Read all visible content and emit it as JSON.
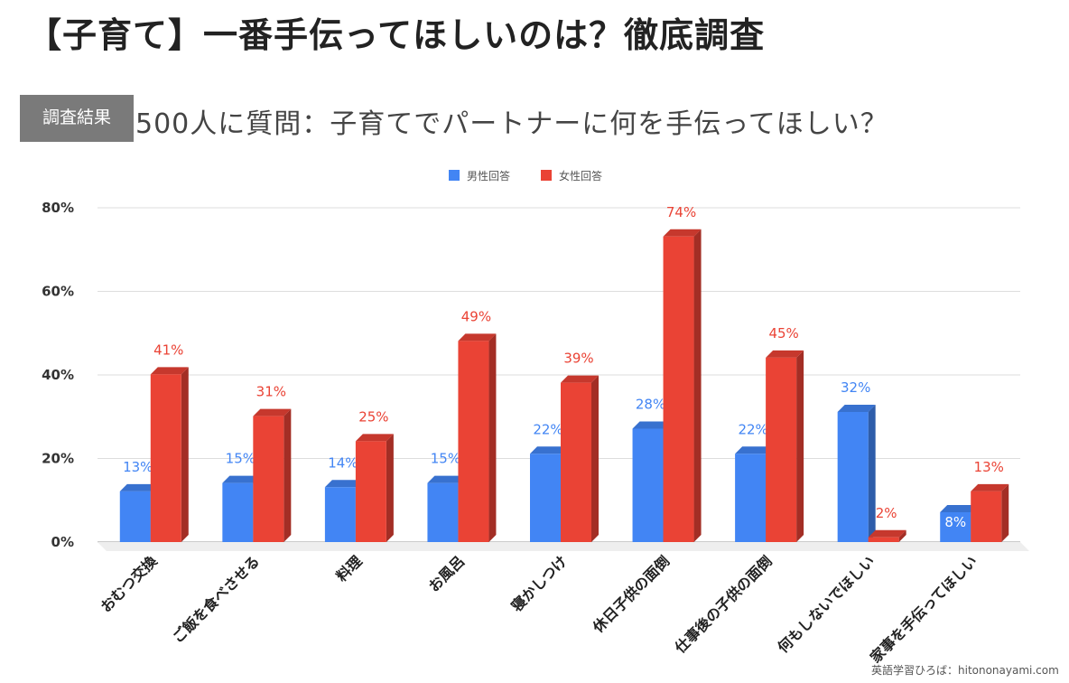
{
  "page": {
    "title": "【子育て】一番手伝ってほしいのは？徹底調査",
    "badge": "調査結果",
    "subtitle": "500人に質問：子育てでパートナーに何を手伝ってほしい？",
    "watermark": "英語学習ひろば：hitononayami.com"
  },
  "chart_data": {
    "type": "bar",
    "style": "3d-clustered",
    "categories": [
      "おむつ交換",
      "ご飯を食べさせる",
      "料理",
      "お風呂",
      "寝かしつけ",
      "休日子供の面倒",
      "仕事後の子供の面倒",
      "何もしないでほしい",
      "家事を手伝ってほしい"
    ],
    "series": [
      {
        "name": "男性回答",
        "color": "#4285f4",
        "values": [
          13,
          15,
          14,
          15,
          22,
          28,
          22,
          32,
          8
        ]
      },
      {
        "name": "女性回答",
        "color": "#ea4335",
        "values": [
          41,
          31,
          25,
          49,
          39,
          74,
          45,
          2,
          13
        ]
      }
    ],
    "ylim": [
      0,
      80
    ],
    "yticks": [
      "0%",
      "20%",
      "40%",
      "60%",
      "80%"
    ],
    "grid": true,
    "legend": "top-center"
  }
}
